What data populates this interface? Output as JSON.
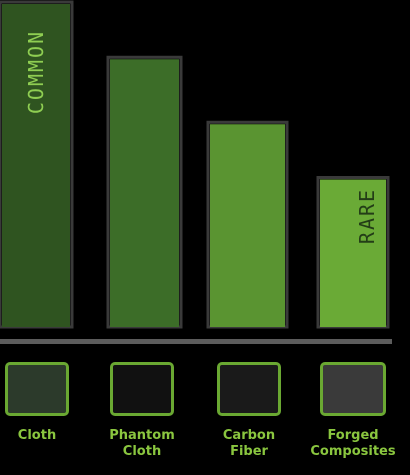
{
  "chart_data": {
    "type": "bar",
    "categories": [
      "Cloth",
      "Phantom Cloth",
      "Carbon Fiber",
      "Forged Composites"
    ],
    "values": [
      100,
      83,
      63,
      46
    ],
    "title": "",
    "xlabel": "",
    "ylabel": "",
    "ylim": [
      0,
      100
    ],
    "grid": false,
    "legend": "none",
    "annotations": [
      {
        "text": "COMMON",
        "category": "Cloth"
      },
      {
        "text": "RARE",
        "category": "Forged Composites"
      }
    ],
    "bar_colors": [
      "#2f5420",
      "#3c6d28",
      "#5a9431",
      "#6aaa36"
    ]
  },
  "swatches": [
    {
      "name": "Cloth",
      "color": "#2c3a2b"
    },
    {
      "name": "Phantom Cloth",
      "color": "#111111"
    },
    {
      "name": "Carbon Fiber",
      "color": "#1a1a1a"
    },
    {
      "name": "Forged Composites",
      "color": "#3a3a3a"
    }
  ],
  "colors": {
    "baseline": "#5c5c5c",
    "label": "#8ac63f",
    "swatch_border": "#6aa832",
    "common_text": "#8fce52",
    "rare_text": "#233d17"
  }
}
